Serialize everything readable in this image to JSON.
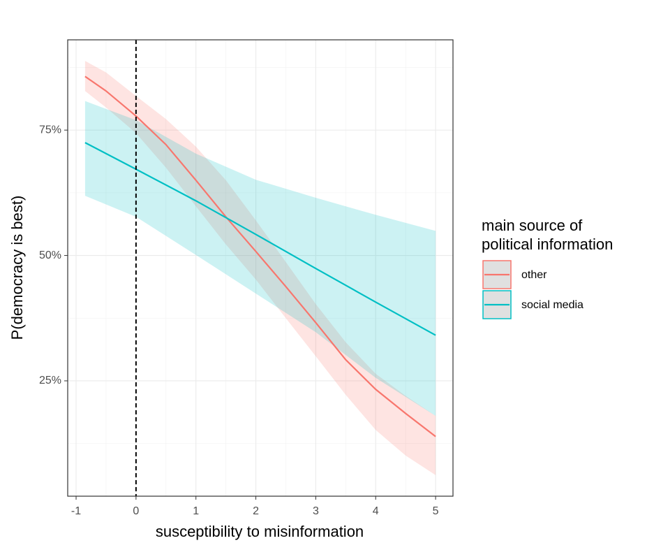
{
  "chart_data": {
    "type": "line-ribbon",
    "x_label": "susceptibility to misinformation",
    "y_label": "P(democracy is best)",
    "legend_title": "main source of\npolitical information",
    "xlim": [
      -1.14,
      5.29
    ],
    "xticks": [
      -1,
      0,
      1,
      2,
      3,
      4,
      5
    ],
    "ylim": [
      2,
      93
    ],
    "yticks": [
      {
        "value": 25,
        "label": "25%"
      },
      {
        "value": 50,
        "label": "50%"
      },
      {
        "value": 75,
        "label": "75%"
      }
    ],
    "vline": 0,
    "grid": true,
    "series": [
      {
        "name": "other",
        "color": "#F8766D",
        "x": [
          -0.85,
          -0.5,
          0,
          0.5,
          1,
          1.5,
          2,
          2.5,
          3,
          3.5,
          4,
          4.5,
          5
        ],
        "values": [
          85.7,
          82.8,
          77.8,
          72.1,
          65,
          57.7,
          50.8,
          43.8,
          36.6,
          29.2,
          23.3,
          18.5,
          13.9
        ],
        "upper": [
          88.8,
          86.5,
          81.8,
          77.2,
          71.7,
          65,
          57,
          48.7,
          40.3,
          32.7,
          26.4,
          22,
          18
        ],
        "lower": [
          82.8,
          79.5,
          74.4,
          67.5,
          59.8,
          52.2,
          45.2,
          37.5,
          29.9,
          22.2,
          15.2,
          10.1,
          6.2
        ]
      },
      {
        "name": "social media",
        "color": "#00BFC4",
        "x": [
          -0.85,
          0,
          1,
          2,
          3,
          4,
          5
        ],
        "values": [
          72.5,
          67.2,
          60.9,
          54.2,
          47.4,
          40.7,
          34.1
        ],
        "upper": [
          80.8,
          77,
          70.3,
          65.1,
          61.5,
          58.1,
          54.9
        ],
        "lower": [
          61.9,
          57.7,
          50.1,
          42.4,
          34.7,
          25.6,
          18
        ]
      }
    ]
  }
}
